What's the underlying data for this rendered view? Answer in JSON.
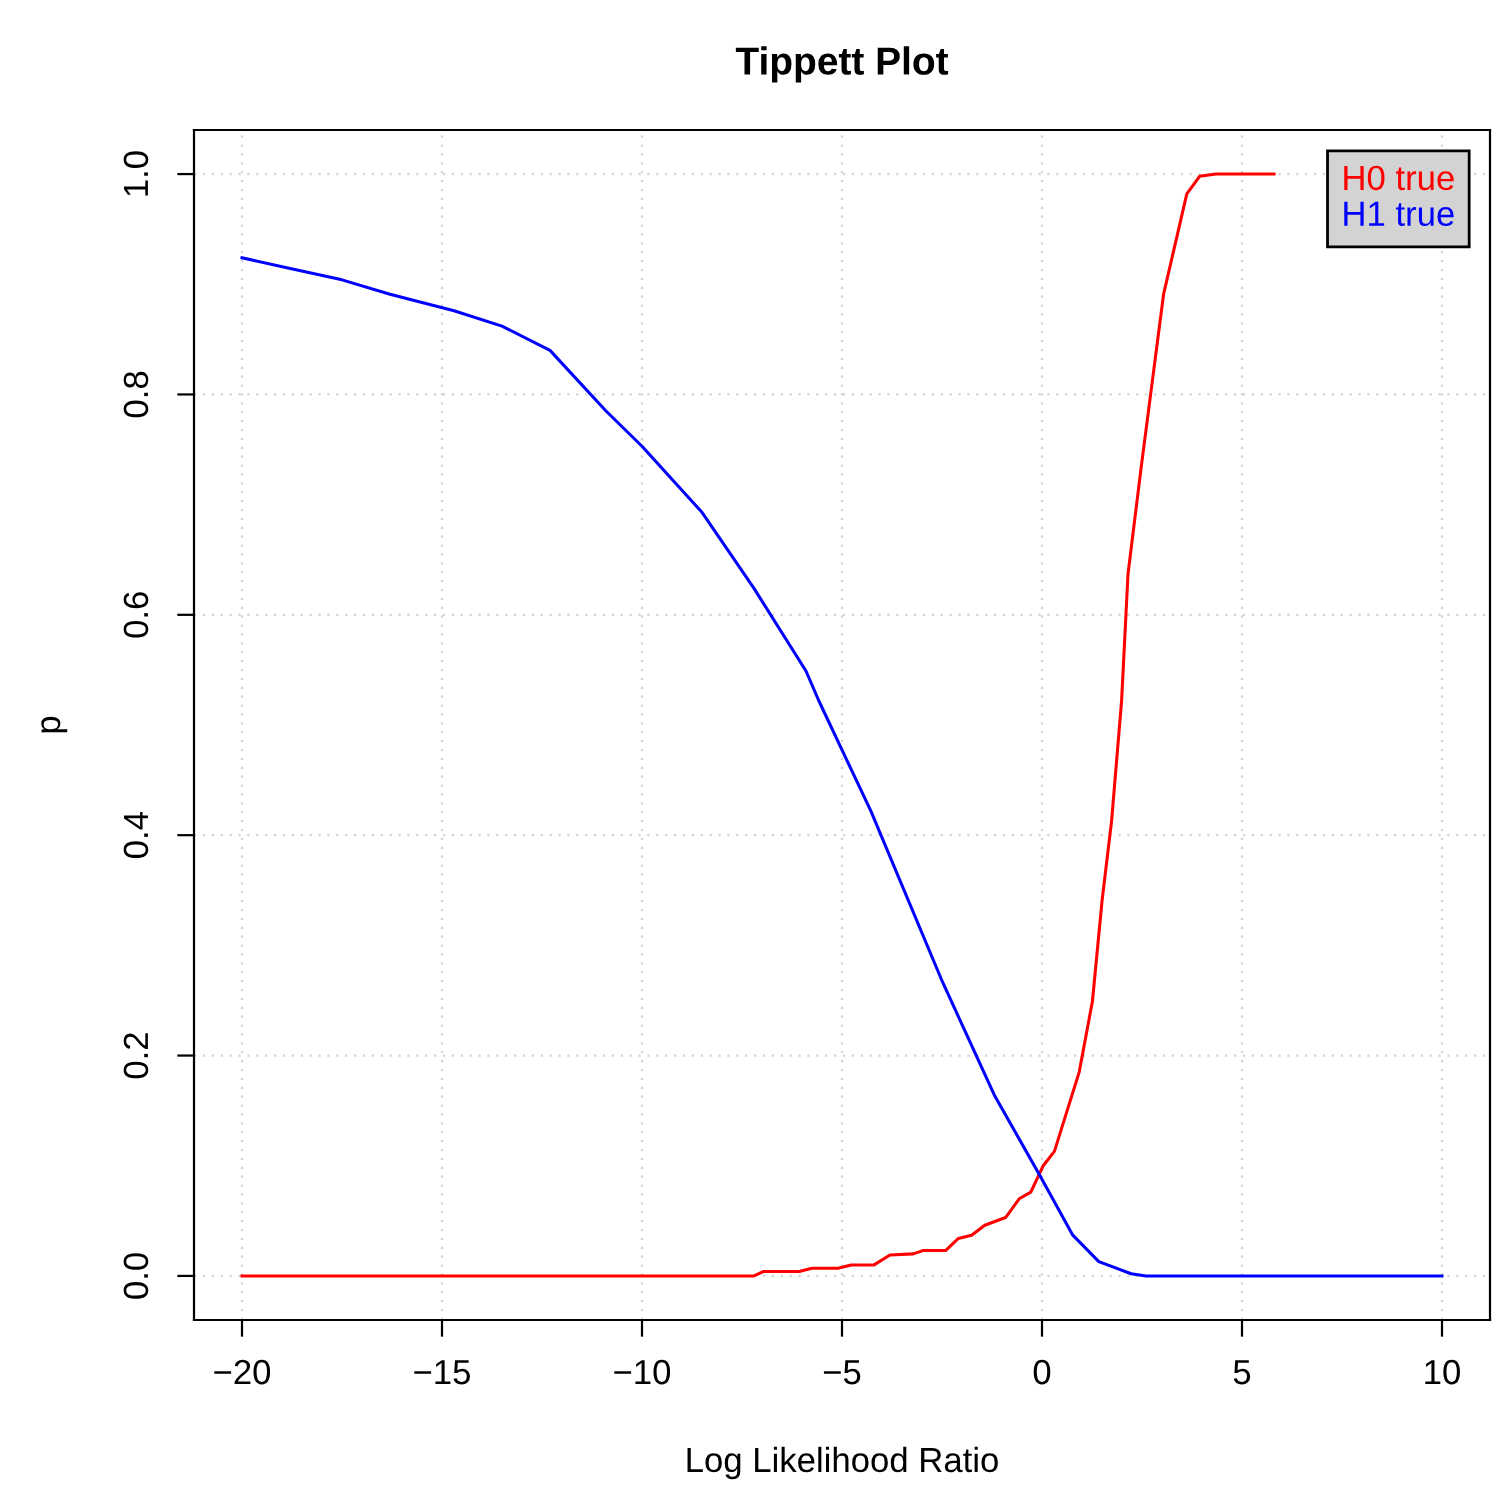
{
  "chart_data": {
    "type": "line",
    "title": "Tippett Plot",
    "xlabel": "Log Likelihood Ratio",
    "ylabel": "p",
    "xlim": [
      -21.2,
      11.2
    ],
    "ylim": [
      -0.04,
      1.04
    ],
    "xticks": [
      {
        "value": -20,
        "label": "−20"
      },
      {
        "value": -15,
        "label": "−15"
      },
      {
        "value": -10,
        "label": "−10"
      },
      {
        "value": -5,
        "label": "−5"
      },
      0,
      5,
      10
    ],
    "yticks": [
      {
        "value": 0,
        "label": "0.0"
      },
      0.2,
      0.4,
      0.6,
      0.8,
      {
        "value": 1,
        "label": "1.0"
      }
    ],
    "grid": true,
    "legend": "top right",
    "line_style": "solid",
    "marker": "none",
    "series": [
      {
        "name": "H0 true",
        "color": "#ff0000",
        "x": [
          -20,
          -7.2,
          -6.97,
          -6.07,
          -5.75,
          -5.1,
          -4.77,
          -4.2,
          -3.8,
          -3.22,
          -2.98,
          -2.41,
          -2.09,
          -1.76,
          -1.43,
          -0.91,
          -0.57,
          -0.28,
          0.03,
          0.31,
          0.93,
          1.26,
          1.5,
          1.74,
          1.99,
          2.15,
          2.48,
          3.04,
          3.62,
          3.94,
          4.35,
          5.8
        ],
        "values": [
          0,
          0,
          0.004,
          0.004,
          0.007,
          0.007,
          0.01,
          0.01,
          0.019,
          0.02,
          0.023,
          0.023,
          0.034,
          0.037,
          0.046,
          0.053,
          0.07,
          0.076,
          0.1,
          0.113,
          0.185,
          0.249,
          0.34,
          0.413,
          0.522,
          0.637,
          0.734,
          0.891,
          0.982,
          0.998,
          1.0,
          1.0
        ]
      },
      {
        "name": "H1 true",
        "color": "#0000ff",
        "x": [
          -20,
          -18.88,
          -17.5,
          -16.3,
          -14.7,
          -13.5,
          -12.3,
          -10.9,
          -10.0,
          -8.5,
          -7.2,
          -5.9,
          -5.58,
          -4.28,
          -2.49,
          -1.19,
          -0.05,
          0.77,
          1.42,
          2.23,
          2.6,
          10
        ],
        "values": [
          0.924,
          0.915,
          0.904,
          0.891,
          0.876,
          0.862,
          0.84,
          0.785,
          0.753,
          0.693,
          0.624,
          0.549,
          0.522,
          0.422,
          0.267,
          0.164,
          0.091,
          0.037,
          0.013,
          0.002,
          0,
          0
        ]
      }
    ]
  }
}
